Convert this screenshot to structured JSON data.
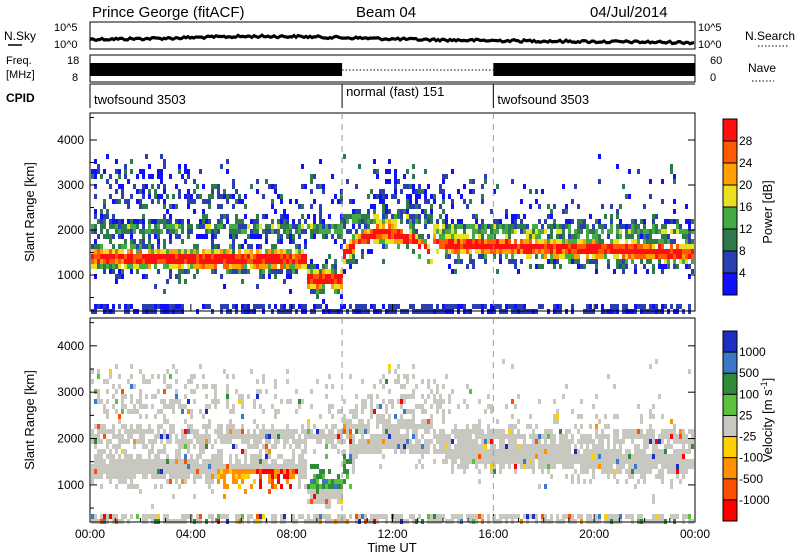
{
  "header": {
    "station": "Prince George (fitACF)",
    "beam": "Beam 04",
    "date": "04/Jul/2014"
  },
  "strip": {
    "nsky_label": "N.Sky",
    "nsky_ticks": [
      "10^5",
      "10^0"
    ],
    "nsearch_label": "N.Search",
    "freq_label_1": "Freq.",
    "freq_label_2": "[MHz]",
    "freq_ticks": [
      "18",
      "8"
    ],
    "nave_label": "Nave",
    "nave_ticks": [
      "60",
      "0"
    ],
    "cpid_label": "CPID",
    "cpid_segments": [
      {
        "label": "twofsound 3503",
        "start": 0,
        "end": 10
      },
      {
        "label": "normal (fast) 151",
        "start": 10,
        "end": 16
      },
      {
        "label": "twofsound 3503",
        "start": 16,
        "end": 24
      }
    ]
  },
  "chart_data": [
    {
      "type": "heatmap",
      "name": "power-panel",
      "ylabel": "Slant Range [km]",
      "ylim": [
        200,
        4600
      ],
      "yticks": [
        1000,
        2000,
        3000,
        4000
      ],
      "xlim": [
        0,
        24
      ],
      "colorbar": {
        "label": "Power [dB]",
        "ticks": [
          "4",
          "8",
          "12",
          "16",
          "20",
          "24",
          "28"
        ],
        "colors": [
          "#1010ff",
          "#2a3fb0",
          "#2f7a4a",
          "#44aa44",
          "#e8e020",
          "#ffa000",
          "#ff5a00",
          "#ff1010"
        ]
      }
    },
    {
      "type": "heatmap",
      "name": "velocity-panel",
      "ylabel": "Slant Range [km]",
      "ylim": [
        200,
        4600
      ],
      "yticks": [
        1000,
        2000,
        3000,
        4000
      ],
      "xlim": [
        0,
        24
      ],
      "xlabel": "Time UT",
      "xticks": [
        "00:00",
        "04:00",
        "08:00",
        "12:00",
        "16:00",
        "20:00",
        "00:00"
      ],
      "colorbar": {
        "label": "Velocity [m s^-1]",
        "ticks": [
          "1000",
          "500",
          "100",
          "25",
          "-25",
          "-100",
          "-500",
          "-1000"
        ],
        "colors": [
          "#1d2fc0",
          "#3a78c8",
          "#2f8a3a",
          "#5cc040",
          "#c8c8c0",
          "#ffd000",
          "#ff9000",
          "#ff5000",
          "#ff0000"
        ]
      }
    }
  ]
}
